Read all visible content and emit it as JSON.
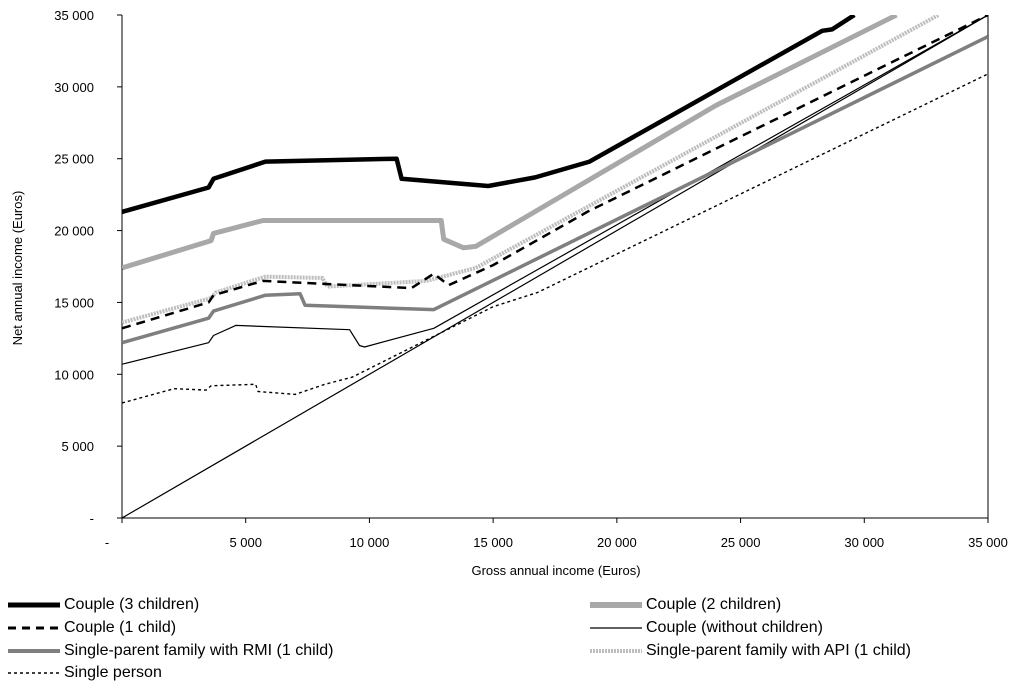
{
  "chart_data": {
    "type": "line",
    "xlabel": "Gross annual income (Euros)",
    "ylabel": "Net annual income (Euros)",
    "xlim": [
      0,
      35000
    ],
    "ylim": [
      0,
      35000
    ],
    "x_ticks": [
      {
        "value": 0,
        "label": "-"
      },
      {
        "value": 5000,
        "label": "5 000"
      },
      {
        "value": 10000,
        "label": "10 000"
      },
      {
        "value": 15000,
        "label": "15 000"
      },
      {
        "value": 20000,
        "label": "20 000"
      },
      {
        "value": 25000,
        "label": "25 000"
      },
      {
        "value": 30000,
        "label": "30 000"
      },
      {
        "value": 35000,
        "label": "35 000"
      }
    ],
    "y_ticks": [
      {
        "value": 0,
        "label": "-"
      },
      {
        "value": 5000,
        "label": "5 000"
      },
      {
        "value": 10000,
        "label": "10 000"
      },
      {
        "value": 15000,
        "label": "15 000"
      },
      {
        "value": 20000,
        "label": "20 000"
      },
      {
        "value": 25000,
        "label": "25 000"
      },
      {
        "value": 30000,
        "label": "30 000"
      },
      {
        "value": 35000,
        "label": "35 000"
      }
    ],
    "grid": false,
    "legend_position": "bottom",
    "series": [
      {
        "name": "Couple (3 children)",
        "style": "thick-solid",
        "color": "#000000",
        "points": [
          [
            0,
            21300
          ],
          [
            3500,
            23000
          ],
          [
            3700,
            23600
          ],
          [
            5800,
            24800
          ],
          [
            11100,
            25000
          ],
          [
            11300,
            23600
          ],
          [
            14800,
            23100
          ],
          [
            16700,
            23700
          ],
          [
            18900,
            24800
          ],
          [
            28300,
            33900
          ],
          [
            28700,
            34000
          ],
          [
            29600,
            35000
          ]
        ]
      },
      {
        "name": "Couple (2 children)",
        "style": "wide-light",
        "color": "#a8a8a8",
        "points": [
          [
            0,
            17400
          ],
          [
            3600,
            19300
          ],
          [
            3700,
            19800
          ],
          [
            5700,
            20700
          ],
          [
            12900,
            20700
          ],
          [
            13000,
            19400
          ],
          [
            13800,
            18800
          ],
          [
            14300,
            18900
          ],
          [
            24000,
            28700
          ],
          [
            31300,
            35000
          ]
        ]
      },
      {
        "name": "Couple (1 child)",
        "style": "dashed",
        "color": "#000000",
        "points": [
          [
            0,
            13200
          ],
          [
            3500,
            15000
          ],
          [
            3700,
            15500
          ],
          [
            5700,
            16500
          ],
          [
            11700,
            16000
          ],
          [
            12600,
            17000
          ],
          [
            13200,
            16200
          ],
          [
            15000,
            17600
          ],
          [
            18800,
            21300
          ],
          [
            35000,
            35000
          ]
        ]
      },
      {
        "name": "Couple (without children)",
        "style": "thin-solid",
        "color": "#000000",
        "points": [
          [
            0,
            10700
          ],
          [
            3500,
            12200
          ],
          [
            3700,
            12700
          ],
          [
            4600,
            13400
          ],
          [
            9200,
            13100
          ],
          [
            9600,
            12000
          ],
          [
            9800,
            11900
          ],
          [
            12600,
            13200
          ],
          [
            35000,
            35000
          ]
        ]
      },
      {
        "name": "Single-parent family with RMI (1 child)",
        "style": "gray-medium",
        "color": "#7f7f7f",
        "points": [
          [
            0,
            12200
          ],
          [
            3500,
            13900
          ],
          [
            3700,
            14400
          ],
          [
            5800,
            15500
          ],
          [
            7200,
            15600
          ],
          [
            7400,
            14800
          ],
          [
            12600,
            14500
          ],
          [
            35000,
            33500
          ]
        ]
      },
      {
        "name": "Single-parent family with API (1 child)",
        "style": "dotted-light",
        "color": "#bdbdbd",
        "points": [
          [
            0,
            13600
          ],
          [
            3600,
            15300
          ],
          [
            3800,
            15700
          ],
          [
            5800,
            16800
          ],
          [
            8100,
            16700
          ],
          [
            8300,
            16100
          ],
          [
            12300,
            16500
          ],
          [
            14300,
            17400
          ],
          [
            33000,
            35000
          ]
        ]
      },
      {
        "name": "Single person",
        "style": "dotted",
        "color": "#000000",
        "points": [
          [
            0,
            8000
          ],
          [
            2100,
            9000
          ],
          [
            3400,
            8900
          ],
          [
            3600,
            9200
          ],
          [
            5400,
            9300
          ],
          [
            5500,
            8800
          ],
          [
            7000,
            8600
          ],
          [
            8200,
            9300
          ],
          [
            9300,
            9800
          ],
          [
            15000,
            14700
          ],
          [
            16800,
            15700
          ],
          [
            35000,
            30900
          ]
        ]
      },
      {
        "name": "",
        "style": "thin-solid",
        "color": "#000000",
        "points": [
          [
            0,
            0
          ],
          [
            35000,
            35000
          ]
        ]
      }
    ]
  },
  "legend": {
    "items": [
      {
        "label": "Couple (3 children)"
      },
      {
        "label": "Couple (2 children)"
      },
      {
        "label": "Couple (1 child)"
      },
      {
        "label": "Couple (without children)"
      },
      {
        "label": "Single-parent family with RMI (1 child)"
      },
      {
        "label": "Single-parent family with API (1 child)"
      },
      {
        "label": "Single person"
      }
    ]
  }
}
